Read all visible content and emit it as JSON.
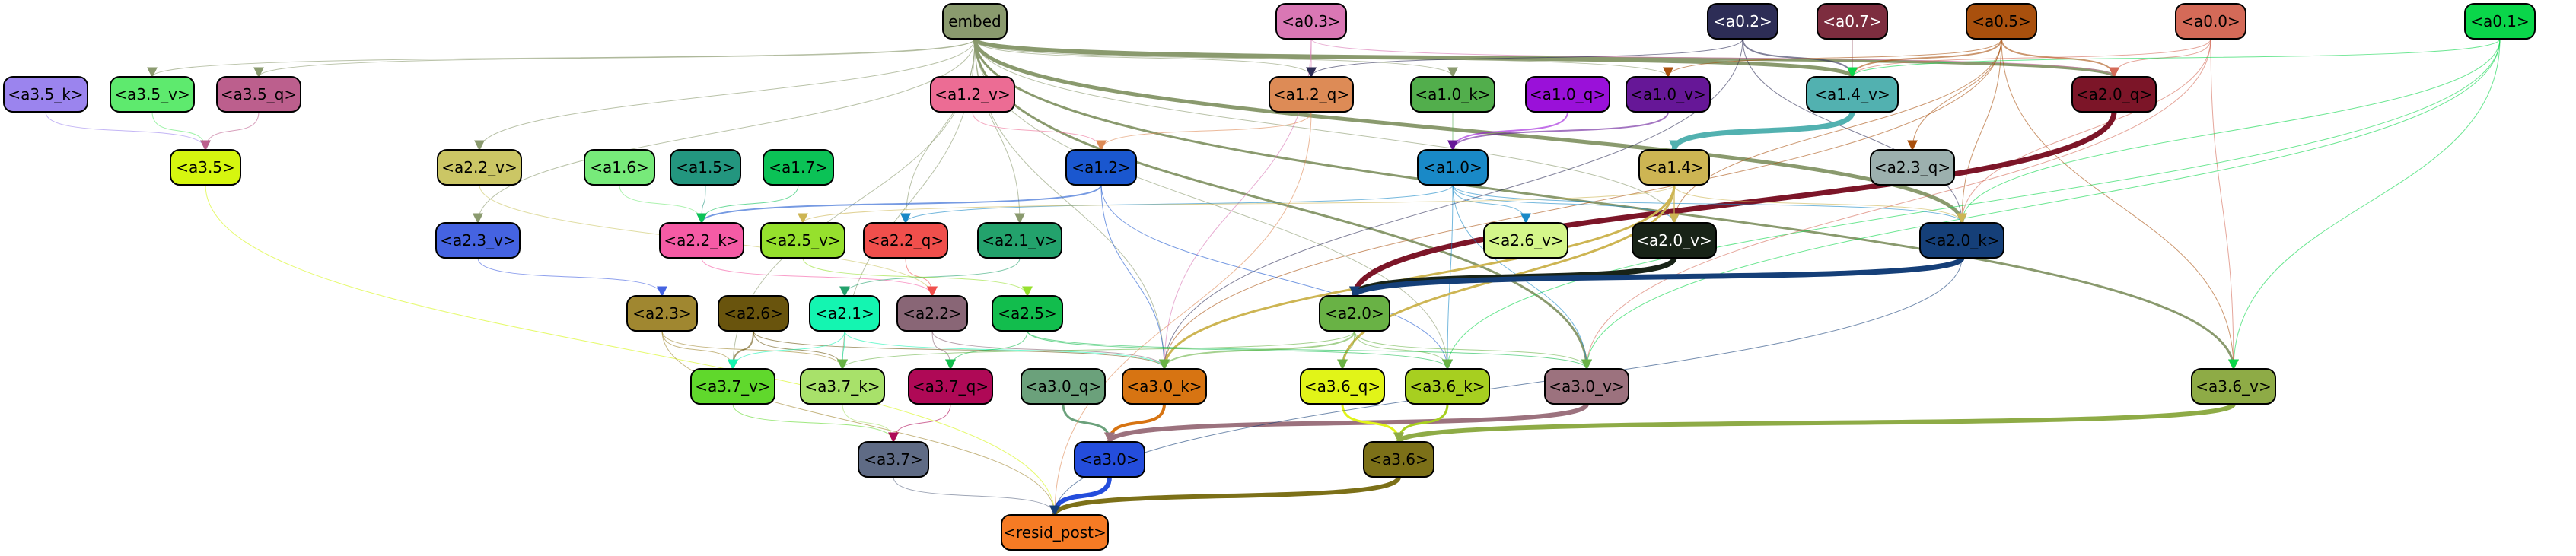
{
  "graph": {
    "nodes": [
      {
        "id": "embed",
        "label": "embed",
        "fill": "#8a9a6e",
        "text": "#000000"
      },
      {
        "id": "a0_3",
        "label": "<a0.3>",
        "fill": "#d977b4",
        "text": "#000000"
      },
      {
        "id": "a0_2",
        "label": "<a0.2>",
        "fill": "#2d2d56",
        "text": "#ffffff"
      },
      {
        "id": "a0_7",
        "label": "<a0.7>",
        "fill": "#7d2d3f",
        "text": "#ffffff"
      },
      {
        "id": "a0_5",
        "label": "<a0.5>",
        "fill": "#a9500d",
        "text": "#000000"
      },
      {
        "id": "a0_0",
        "label": "<a0.0>",
        "fill": "#d46a58",
        "text": "#000000"
      },
      {
        "id": "a0_1",
        "label": "<a0.1>",
        "fill": "#0ad64a",
        "text": "#000000"
      },
      {
        "id": "a3_5_k",
        "label": "<a3.5_k>",
        "fill": "#9b84ee",
        "text": "#000000"
      },
      {
        "id": "a3_5_v",
        "label": "<a3.5_v>",
        "fill": "#5eea6e",
        "text": "#000000"
      },
      {
        "id": "a3_5_q",
        "label": "<a3.5_q>",
        "fill": "#bc5f8d",
        "text": "#000000"
      },
      {
        "id": "a1_2_v",
        "label": "<a1.2_v>",
        "fill": "#ec6c94",
        "text": "#000000"
      },
      {
        "id": "a1_2_q",
        "label": "<a1.2_q>",
        "fill": "#dd8b56",
        "text": "#000000"
      },
      {
        "id": "a1_0_k",
        "label": "<a1.0_k>",
        "fill": "#52ae4c",
        "text": "#000000"
      },
      {
        "id": "a1_0_q",
        "label": "<a1.0_q>",
        "fill": "#9a11d9",
        "text": "#000000"
      },
      {
        "id": "a1_0_v",
        "label": "<a1.0_v>",
        "fill": "#661797",
        "text": "#000000"
      },
      {
        "id": "a1_4_v",
        "label": "<a1.4_v>",
        "fill": "#52b1b0",
        "text": "#000000"
      },
      {
        "id": "a2_0_q",
        "label": "<a2.0_q>",
        "fill": "#7c1528",
        "text": "#000000"
      },
      {
        "id": "a3_5",
        "label": "<a3.5>",
        "fill": "#d6f60f",
        "text": "#000000"
      },
      {
        "id": "a2_2_v",
        "label": "<a2.2_v>",
        "fill": "#cbc665",
        "text": "#000000"
      },
      {
        "id": "a1_6",
        "label": "<a1.6>",
        "fill": "#77ea7a",
        "text": "#000000"
      },
      {
        "id": "a1_5",
        "label": "<a1.5>",
        "fill": "#23967f",
        "text": "#000000"
      },
      {
        "id": "a1_7",
        "label": "<a1.7>",
        "fill": "#0bc256",
        "text": "#000000"
      },
      {
        "id": "a1_2",
        "label": "<a1.2>",
        "fill": "#1a57cf",
        "text": "#000000"
      },
      {
        "id": "a1_0",
        "label": "<a1.0>",
        "fill": "#1989c7",
        "text": "#000000"
      },
      {
        "id": "a1_4",
        "label": "<a1.4>",
        "fill": "#cdb553",
        "text": "#000000"
      },
      {
        "id": "a2_3_q",
        "label": "<a2.3_q>",
        "fill": "#9cb0ae",
        "text": "#000000"
      },
      {
        "id": "a2_3_v",
        "label": "<a2.3_v>",
        "fill": "#4563e1",
        "text": "#000000"
      },
      {
        "id": "a2_2_k",
        "label": "<a2.2_k>",
        "fill": "#f55ba5",
        "text": "#000000"
      },
      {
        "id": "a2_5_v",
        "label": "<a2.5_v>",
        "fill": "#96e02d",
        "text": "#000000"
      },
      {
        "id": "a2_2_q",
        "label": "<a2.2_q>",
        "fill": "#f04f4c",
        "text": "#000000"
      },
      {
        "id": "a2_1_v",
        "label": "<a2.1_v>",
        "fill": "#23a26c",
        "text": "#000000"
      },
      {
        "id": "a2_6_v",
        "label": "<a2.6_v>",
        "fill": "#d4f68a",
        "text": "#000000"
      },
      {
        "id": "a2_0_v",
        "label": "<a2.0_v>",
        "fill": "#182317",
        "text": "#ffffff"
      },
      {
        "id": "a2_0_k",
        "label": "<a2.0_k>",
        "fill": "#153f78",
        "text": "#000000"
      },
      {
        "id": "a2_3",
        "label": "<a2.3>",
        "fill": "#a08730",
        "text": "#000000"
      },
      {
        "id": "a2_6",
        "label": "<a2.6>",
        "fill": "#69540d",
        "text": "#000000"
      },
      {
        "id": "a2_1",
        "label": "<a2.1>",
        "fill": "#14f5b1",
        "text": "#000000"
      },
      {
        "id": "a2_2",
        "label": "<a2.2>",
        "fill": "#896676",
        "text": "#000000"
      },
      {
        "id": "a2_5",
        "label": "<a2.5>",
        "fill": "#12bd4d",
        "text": "#000000"
      },
      {
        "id": "a2_0",
        "label": "<a2.0>",
        "fill": "#69b245",
        "text": "#000000"
      },
      {
        "id": "a3_7_v",
        "label": "<a3.7_v>",
        "fill": "#60d82c",
        "text": "#000000"
      },
      {
        "id": "a3_7_k",
        "label": "<a3.7_k>",
        "fill": "#a8e16a",
        "text": "#000000"
      },
      {
        "id": "a3_7_q",
        "label": "<a3.7_q>",
        "fill": "#af0956",
        "text": "#000000"
      },
      {
        "id": "a3_0_q",
        "label": "<a3.0_q>",
        "fill": "#6ba17b",
        "text": "#000000"
      },
      {
        "id": "a3_0_k",
        "label": "<a3.0_k>",
        "fill": "#d77412",
        "text": "#000000"
      },
      {
        "id": "a3_6_q",
        "label": "<a3.6_q>",
        "fill": "#e1f418",
        "text": "#000000"
      },
      {
        "id": "a3_6_k",
        "label": "<a3.6_k>",
        "fill": "#a7cf20",
        "text": "#000000"
      },
      {
        "id": "a3_0_v",
        "label": "<a3.0_v>",
        "fill": "#9c727e",
        "text": "#000000"
      },
      {
        "id": "a3_6_v",
        "label": "<a3.6_v>",
        "fill": "#8eab46",
        "text": "#000000"
      },
      {
        "id": "a3_7",
        "label": "<a3.7>",
        "fill": "#5f6b85",
        "text": "#000000"
      },
      {
        "id": "a3_0",
        "label": "<a3.0>",
        "fill": "#244ddc",
        "text": "#000000"
      },
      {
        "id": "a3_6",
        "label": "<a3.6>",
        "fill": "#7c7018",
        "text": "#000000"
      },
      {
        "id": "resid_post",
        "label": "<resid_post>",
        "fill": "#f67b24",
        "text": "#000000"
      }
    ],
    "edges": [
      {
        "from": "embed",
        "to": "a1_4_v",
        "color": "#8a9a6e",
        "weight": 5
      },
      {
        "from": "embed",
        "to": "a2_0_k",
        "color": "#8a9a6e",
        "weight": 5
      },
      {
        "from": "embed",
        "to": "a2_0_q",
        "color": "#8a9a6e",
        "weight": 4
      },
      {
        "from": "embed",
        "to": "a3_6_v",
        "color": "#8a9a6e",
        "weight": 3
      },
      {
        "from": "embed",
        "to": "a3_0_v",
        "color": "#8a9a6e",
        "weight": 3
      },
      {
        "from": "embed",
        "to": "a2_0_v",
        "color": "#8a9a6e",
        "weight": 1
      },
      {
        "from": "embed",
        "to": "a1_2_q",
        "color": "#8a9a6e",
        "weight": 1
      },
      {
        "from": "embed",
        "to": "a1_0_k",
        "color": "#8a9a6e",
        "weight": 1
      },
      {
        "from": "embed",
        "to": "a1_0_v",
        "color": "#8a9a6e",
        "weight": 1
      },
      {
        "from": "embed",
        "to": "a3_5_v",
        "color": "#8a9a6e",
        "weight": 1
      },
      {
        "from": "embed",
        "to": "a3_5_q",
        "color": "#8a9a6e",
        "weight": 1
      },
      {
        "from": "embed",
        "to": "a2_2_v",
        "color": "#8a9a6e",
        "weight": 1
      },
      {
        "from": "embed",
        "to": "a2_3_v",
        "color": "#8a9a6e",
        "weight": 1
      },
      {
        "from": "embed",
        "to": "a2_2_q",
        "color": "#8a9a6e",
        "weight": 1
      },
      {
        "from": "embed",
        "to": "a2_1_v",
        "color": "#8a9a6e",
        "weight": 1
      },
      {
        "from": "embed",
        "to": "a3_7_v",
        "color": "#8a9a6e",
        "weight": 1
      },
      {
        "from": "embed",
        "to": "a3_7_k",
        "color": "#8a9a6e",
        "weight": 1
      },
      {
        "from": "embed",
        "to": "a3_0_k",
        "color": "#8a9a6e",
        "weight": 1
      },
      {
        "from": "embed",
        "to": "a3_6_k",
        "color": "#8a9a6e",
        "weight": 1
      },
      {
        "from": "a0_3",
        "to": "a1_2_q",
        "color": "#d977b4",
        "weight": 1
      },
      {
        "from": "a0_3",
        "to": "a2_0_q",
        "color": "#d977b4",
        "weight": 1
      },
      {
        "from": "a0_3",
        "to": "a3_0_k",
        "color": "#d977b4",
        "weight": 1
      },
      {
        "from": "a0_2",
        "to": "a1_4_v",
        "color": "#2d2d56",
        "weight": 2
      },
      {
        "from": "a0_2",
        "to": "a1_2_q",
        "color": "#2d2d56",
        "weight": 1
      },
      {
        "from": "a0_2",
        "to": "a2_0_k",
        "color": "#2d2d56",
        "weight": 1
      },
      {
        "from": "a0_2",
        "to": "a3_0_k",
        "color": "#2d2d56",
        "weight": 1
      },
      {
        "from": "a0_7",
        "to": "a1_4_v",
        "color": "#7d2d3f",
        "weight": 1
      },
      {
        "from": "a0_5",
        "to": "a1_4_v",
        "color": "#a9500d",
        "weight": 2
      },
      {
        "from": "a0_5",
        "to": "a2_0_q",
        "color": "#a9500d",
        "weight": 2
      },
      {
        "from": "a0_5",
        "to": "a2_0_k",
        "color": "#a9500d",
        "weight": 1
      },
      {
        "from": "a0_5",
        "to": "a2_3_q",
        "color": "#a9500d",
        "weight": 1
      },
      {
        "from": "a0_5",
        "to": "a1_0_v",
        "color": "#a9500d",
        "weight": 1
      },
      {
        "from": "a0_5",
        "to": "a2_0_v",
        "color": "#a9500d",
        "weight": 1
      },
      {
        "from": "a0_5",
        "to": "a3_6_v",
        "color": "#a9500d",
        "weight": 1
      },
      {
        "from": "a0_5",
        "to": "a3_0_k",
        "color": "#a9500d",
        "weight": 1
      },
      {
        "from": "a0_0",
        "to": "a1_4_v",
        "color": "#d46a58",
        "weight": 1
      },
      {
        "from": "a0_0",
        "to": "a2_0_q",
        "color": "#d46a58",
        "weight": 1
      },
      {
        "from": "a0_0",
        "to": "a2_0_k",
        "color": "#d46a58",
        "weight": 1
      },
      {
        "from": "a0_0",
        "to": "a3_6_v",
        "color": "#d46a58",
        "weight": 1
      },
      {
        "from": "a0_0",
        "to": "a3_0_v",
        "color": "#d46a58",
        "weight": 1
      },
      {
        "from": "a0_1",
        "to": "a1_4_v",
        "color": "#0ad64a",
        "weight": 1
      },
      {
        "from": "a0_1",
        "to": "a2_0_k",
        "color": "#0ad64a",
        "weight": 1
      },
      {
        "from": "a0_1",
        "to": "a3_6_v",
        "color": "#0ad64a",
        "weight": 1
      },
      {
        "from": "a0_1",
        "to": "a3_0_v",
        "color": "#0ad64a",
        "weight": 1
      },
      {
        "from": "a0_1",
        "to": "a3_6_k",
        "color": "#0ad64a",
        "weight": 1
      },
      {
        "from": "a3_5_k",
        "to": "a3_5",
        "color": "#9b84ee",
        "weight": 1
      },
      {
        "from": "a3_5_v",
        "to": "a3_5",
        "color": "#5eea6e",
        "weight": 1
      },
      {
        "from": "a3_5_q",
        "to": "a3_5",
        "color": "#bc5f8d",
        "weight": 1
      },
      {
        "from": "a3_5",
        "to": "resid_post",
        "color": "#d6f60f",
        "weight": 1
      },
      {
        "from": "a1_2_v",
        "to": "a1_2",
        "color": "#ec6c94",
        "weight": 1
      },
      {
        "from": "a1_2_q",
        "to": "a1_2",
        "color": "#dd8b56",
        "weight": 1
      },
      {
        "from": "a1_0_k",
        "to": "a1_0",
        "color": "#52ae4c",
        "weight": 1
      },
      {
        "from": "a1_0_q",
        "to": "a1_0",
        "color": "#9a11d9",
        "weight": 2
      },
      {
        "from": "a1_0_v",
        "to": "a1_0",
        "color": "#661797",
        "weight": 2
      },
      {
        "from": "a1_4_v",
        "to": "a1_4",
        "color": "#52b1b0",
        "weight": 7
      },
      {
        "from": "a2_0_q",
        "to": "a2_0",
        "color": "#7c1528",
        "weight": 7
      },
      {
        "from": "a1_2",
        "to": "a2_2_k",
        "color": "#1a57cf",
        "weight": 2
      },
      {
        "from": "a1_2",
        "to": "a3_0_k",
        "color": "#1a57cf",
        "weight": 1
      },
      {
        "from": "a1_2",
        "to": "a3_6_k",
        "color": "#1a57cf",
        "weight": 1
      },
      {
        "from": "a1_0",
        "to": "a2_0_k",
        "color": "#1989c7",
        "weight": 1
      },
      {
        "from": "a1_0",
        "to": "a2_0_v",
        "color": "#1989c7",
        "weight": 1
      },
      {
        "from": "a1_0",
        "to": "a2_2_q",
        "color": "#1989c7",
        "weight": 1
      },
      {
        "from": "a1_0",
        "to": "a2_6_v",
        "color": "#1989c7",
        "weight": 1
      },
      {
        "from": "a1_0",
        "to": "a3_6_k",
        "color": "#1989c7",
        "weight": 1
      },
      {
        "from": "a1_0",
        "to": "a3_0_v",
        "color": "#1989c7",
        "weight": 1
      },
      {
        "from": "a1_4",
        "to": "a2_0_v",
        "color": "#cdb553",
        "weight": 2
      },
      {
        "from": "a1_4",
        "to": "a2_0_k",
        "color": "#cdb553",
        "weight": 1
      },
      {
        "from": "a1_4",
        "to": "a3_6_q",
        "color": "#cdb553",
        "weight": 3
      },
      {
        "from": "a1_4",
        "to": "a3_0_k",
        "color": "#cdb553",
        "weight": 3
      },
      {
        "from": "a1_4",
        "to": "a2_5_v",
        "color": "#cdb553",
        "weight": 1
      },
      {
        "from": "a1_6",
        "to": "a2_2_k",
        "color": "#77ea7a",
        "weight": 1
      },
      {
        "from": "a1_5",
        "to": "a2_2_k",
        "color": "#23967f",
        "weight": 1
      },
      {
        "from": "a1_7",
        "to": "a2_2_k",
        "color": "#0bc256",
        "weight": 1
      },
      {
        "from": "a2_2_v",
        "to": "a2_2",
        "color": "#cbc665",
        "weight": 1
      },
      {
        "from": "a2_3_v",
        "to": "a2_3",
        "color": "#4563e1",
        "weight": 1
      },
      {
        "from": "a2_2_k",
        "to": "a2_2",
        "color": "#f55ba5",
        "weight": 1
      },
      {
        "from": "a2_2_q",
        "to": "a2_2",
        "color": "#f04f4c",
        "weight": 1
      },
      {
        "from": "a2_1_v",
        "to": "a2_1",
        "color": "#23a26c",
        "weight": 1
      },
      {
        "from": "a2_5_v",
        "to": "a2_5",
        "color": "#96e02d",
        "weight": 1
      },
      {
        "from": "a2_0_v",
        "to": "a2_0",
        "color": "#182317",
        "weight": 7
      },
      {
        "from": "a2_0_k",
        "to": "a2_0",
        "color": "#153f78",
        "weight": 7
      },
      {
        "from": "a2_3",
        "to": "a3_7_v",
        "color": "#a08730",
        "weight": 1
      },
      {
        "from": "a2_3",
        "to": "a3_7_k",
        "color": "#a08730",
        "weight": 1
      },
      {
        "from": "a2_3",
        "to": "resid_post",
        "color": "#a08730",
        "weight": 1
      },
      {
        "from": "a2_6",
        "to": "a3_7_v",
        "color": "#69540d",
        "weight": 2
      },
      {
        "from": "a2_6",
        "to": "a3_7_k",
        "color": "#69540d",
        "weight": 1
      },
      {
        "from": "a2_6",
        "to": "a3_0_k",
        "color": "#69540d",
        "weight": 1
      },
      {
        "from": "a2_1",
        "to": "a3_7_v",
        "color": "#14f5b1",
        "weight": 1
      },
      {
        "from": "a2_1",
        "to": "a3_7_k",
        "color": "#14f5b1",
        "weight": 1
      },
      {
        "from": "a2_1",
        "to": "a3_0_k",
        "color": "#14f5b1",
        "weight": 1
      },
      {
        "from": "a2_2",
        "to": "a3_7_q",
        "color": "#896676",
        "weight": 1
      },
      {
        "from": "a2_2",
        "to": "a3_0_k",
        "color": "#896676",
        "weight": 1
      },
      {
        "from": "a2_5",
        "to": "a3_7_q",
        "color": "#12bd4d",
        "weight": 1
      },
      {
        "from": "a2_5",
        "to": "a3_6_k",
        "color": "#12bd4d",
        "weight": 1
      },
      {
        "from": "a2_5",
        "to": "a3_0_v",
        "color": "#12bd4d",
        "weight": 1
      },
      {
        "from": "a2_0",
        "to": "a3_0_k",
        "color": "#69b245",
        "weight": 2
      },
      {
        "from": "a2_0",
        "to": "a3_6_q",
        "color": "#69b245",
        "weight": 1
      },
      {
        "from": "a2_0",
        "to": "a3_6_k",
        "color": "#69b245",
        "weight": 1
      },
      {
        "from": "a2_0",
        "to": "a3_0_v",
        "color": "#69b245",
        "weight": 1
      },
      {
        "from": "a2_0",
        "to": "a3_7_k",
        "color": "#69b245",
        "weight": 1
      },
      {
        "from": "a3_7_v",
        "to": "a3_7",
        "color": "#60d82c",
        "weight": 1
      },
      {
        "from": "a3_7_k",
        "to": "a3_7",
        "color": "#a8e16a",
        "weight": 1
      },
      {
        "from": "a3_7_q",
        "to": "a3_7",
        "color": "#af0956",
        "weight": 1
      },
      {
        "from": "a3_0_q",
        "to": "a3_0",
        "color": "#6ba17b",
        "weight": 3
      },
      {
        "from": "a3_0_k",
        "to": "a3_0",
        "color": "#d77412",
        "weight": 4
      },
      {
        "from": "a3_0_v",
        "to": "a3_0",
        "color": "#9c727e",
        "weight": 6
      },
      {
        "from": "a3_6_q",
        "to": "a3_6",
        "color": "#e1f418",
        "weight": 3
      },
      {
        "from": "a3_6_k",
        "to": "a3_6",
        "color": "#a7cf20",
        "weight": 3
      },
      {
        "from": "a3_6_v",
        "to": "a3_6",
        "color": "#8eab46",
        "weight": 6
      },
      {
        "from": "a3_7",
        "to": "resid_post",
        "color": "#5f6b85",
        "weight": 1
      },
      {
        "from": "a3_0",
        "to": "resid_post",
        "color": "#244ddc",
        "weight": 6
      },
      {
        "from": "a3_6",
        "to": "resid_post",
        "color": "#7c7018",
        "weight": 6
      },
      {
        "from": "a1_2_q",
        "to": "resid_post",
        "color": "#dd8b56",
        "weight": 1
      },
      {
        "from": "a2_0_k",
        "to": "resid_post",
        "color": "#153f78",
        "weight": 1
      }
    ]
  }
}
